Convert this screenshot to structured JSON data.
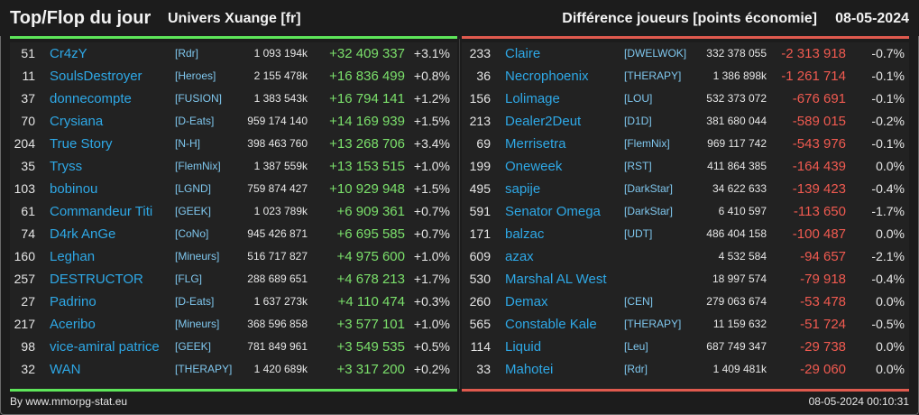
{
  "header": {
    "title": "Top/Flop du jour",
    "universe": "Univers Xuange [fr]",
    "metric": "Différence joueurs [points économie]",
    "date": "08-05-2024"
  },
  "colors": {
    "positive": "#7be06b",
    "negative": "#f05a50",
    "name": "#2ea8e6",
    "top_bar": "#5ee65a",
    "flop_bar": "#e05a4e"
  },
  "top": [
    {
      "rank": "51",
      "name": "Cr4zY",
      "alliance": "[Rdr]",
      "points": "1 093 194k",
      "diff": "+32 409 337",
      "pct": "+3.1%"
    },
    {
      "rank": "11",
      "name": "SoulsDestroyer",
      "alliance": "[Heroes]",
      "points": "2 155 478k",
      "diff": "+16 836 499",
      "pct": "+0.8%"
    },
    {
      "rank": "37",
      "name": "donnecompte",
      "alliance": "[FUSION]",
      "points": "1 383 543k",
      "diff": "+16 794 141",
      "pct": "+1.2%"
    },
    {
      "rank": "70",
      "name": "Crysiana",
      "alliance": "[D-Eats]",
      "points": "959 174 140",
      "diff": "+14 169 939",
      "pct": "+1.5%"
    },
    {
      "rank": "204",
      "name": "True Story",
      "alliance": "[N-H]",
      "points": "398 463 760",
      "diff": "+13 268 706",
      "pct": "+3.4%"
    },
    {
      "rank": "35",
      "name": "Tryss",
      "alliance": "[FlemNix]",
      "points": "1 387 559k",
      "diff": "+13 153 515",
      "pct": "+1.0%"
    },
    {
      "rank": "103",
      "name": "bobinou",
      "alliance": "[LGND]",
      "points": "759 874 427",
      "diff": "+10 929 948",
      "pct": "+1.5%"
    },
    {
      "rank": "61",
      "name": "Commandeur Titi",
      "alliance": "[GEEK]",
      "points": "1 023 789k",
      "diff": "+6 909 361",
      "pct": "+0.7%"
    },
    {
      "rank": "74",
      "name": "D4rk AnGe",
      "alliance": "[CoNo]",
      "points": "945 426 871",
      "diff": "+6 695 585",
      "pct": "+0.7%"
    },
    {
      "rank": "160",
      "name": "Leghan",
      "alliance": "[Mineurs]",
      "points": "516 717 827",
      "diff": "+4 975 600",
      "pct": "+1.0%"
    },
    {
      "rank": "257",
      "name": "DESTRUCTOR",
      "alliance": "[FLG]",
      "points": "288 689 651",
      "diff": "+4 678 213",
      "pct": "+1.7%"
    },
    {
      "rank": "27",
      "name": "Padrino",
      "alliance": "[D-Eats]",
      "points": "1 637 273k",
      "diff": "+4 110 474",
      "pct": "+0.3%"
    },
    {
      "rank": "217",
      "name": "Aceribo",
      "alliance": "[Mineurs]",
      "points": "368 596 858",
      "diff": "+3 577 101",
      "pct": "+1.0%"
    },
    {
      "rank": "98",
      "name": "vice-amiral patrice",
      "alliance": "[GEEK]",
      "points": "781 849 961",
      "diff": "+3 549 535",
      "pct": "+0.5%"
    },
    {
      "rank": "32",
      "name": "WAN",
      "alliance": "[THERAPY]",
      "points": "1 420 689k",
      "diff": "+3 317 200",
      "pct": "+0.2%"
    }
  ],
  "flop": [
    {
      "rank": "233",
      "name": "Claire",
      "alliance": "[DWELWOK]",
      "points": "332 378 055",
      "diff": "-2 313 918",
      "pct": "-0.7%"
    },
    {
      "rank": "36",
      "name": "Necrophoenix",
      "alliance": "[THERAPY]",
      "points": "1 386 898k",
      "diff": "-1 261 714",
      "pct": "-0.1%"
    },
    {
      "rank": "156",
      "name": "Lolimage",
      "alliance": "[LOU]",
      "points": "532 373 072",
      "diff": "-676 691",
      "pct": "-0.1%"
    },
    {
      "rank": "213",
      "name": "Dealer2Deut",
      "alliance": "[D1D]",
      "points": "381 680 044",
      "diff": "-589 015",
      "pct": "-0.2%"
    },
    {
      "rank": "69",
      "name": "Merrisetra",
      "alliance": "[FlemNix]",
      "points": "969 117 742",
      "diff": "-543 976",
      "pct": "-0.1%"
    },
    {
      "rank": "199",
      "name": "Oneweek",
      "alliance": "[RST]",
      "points": "411 864 385",
      "diff": "-164 439",
      "pct": "0.0%"
    },
    {
      "rank": "495",
      "name": "sapije",
      "alliance": "[DarkStar]",
      "points": "34 622 633",
      "diff": "-139 423",
      "pct": "-0.4%"
    },
    {
      "rank": "591",
      "name": "Senator Omega",
      "alliance": "[DarkStar]",
      "points": "6 410 597",
      "diff": "-113 650",
      "pct": "-1.7%"
    },
    {
      "rank": "171",
      "name": "balzac",
      "alliance": "[UDT]",
      "points": "486 404 158",
      "diff": "-100 487",
      "pct": "0.0%"
    },
    {
      "rank": "609",
      "name": "azax",
      "alliance": "",
      "points": "4 532 584",
      "diff": "-94 657",
      "pct": "-2.1%"
    },
    {
      "rank": "530",
      "name": "Marshal AL West",
      "alliance": "",
      "points": "18 997 574",
      "diff": "-79 918",
      "pct": "-0.4%"
    },
    {
      "rank": "260",
      "name": "Demax",
      "alliance": "[CEN]",
      "points": "279 063 674",
      "diff": "-53 478",
      "pct": "0.0%"
    },
    {
      "rank": "565",
      "name": "Constable Kale",
      "alliance": "[THERAPY]",
      "points": "11 159 632",
      "diff": "-51 724",
      "pct": "-0.5%"
    },
    {
      "rank": "114",
      "name": "Liquid",
      "alliance": "[Leu]",
      "points": "687 749 347",
      "diff": "-29 738",
      "pct": "0.0%"
    },
    {
      "rank": "33",
      "name": "Mahotei",
      "alliance": "[Rdr]",
      "points": "1 409 481k",
      "diff": "-29 060",
      "pct": "0.0%"
    }
  ],
  "footer": {
    "credit": "By www.mmorpg-stat.eu",
    "timestamp": "08-05-2024 00:10:31"
  }
}
